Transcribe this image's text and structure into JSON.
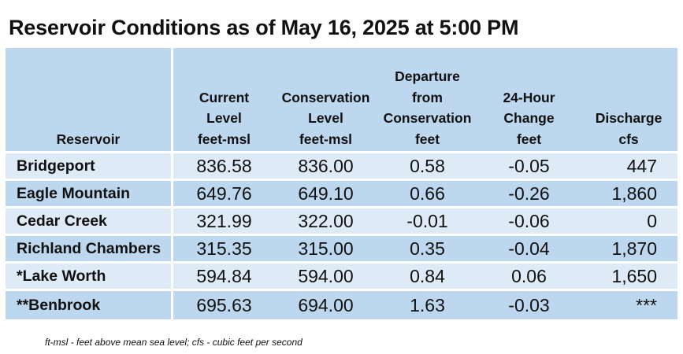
{
  "title": "Reservoir Conditions as of May 16, 2025 at 5:00 PM",
  "headers": [
    [
      "Reservoir"
    ],
    [
      "Current",
      "Level",
      "feet-msl"
    ],
    [
      "Conservation",
      "Level",
      "feet-msl"
    ],
    [
      "Departure",
      "from",
      "Conservation",
      "feet"
    ],
    [
      "24-Hour",
      "Change",
      "feet"
    ],
    [
      "Discharge",
      "cfs"
    ]
  ],
  "rows": [
    [
      "Bridgeport",
      "836.58",
      "836.00",
      "0.58",
      "-0.05",
      "447"
    ],
    [
      "Eagle Mountain",
      "649.76",
      "649.10",
      "0.66",
      "-0.26",
      "1,860"
    ],
    [
      "Cedar Creek",
      "321.99",
      "322.00",
      "-0.01",
      "-0.06",
      "0"
    ],
    [
      "Richland Chambers",
      "315.35",
      "315.00",
      "0.35",
      "-0.04",
      "1,870"
    ],
    [
      "*Lake Worth",
      "594.84",
      "594.00",
      "0.84",
      "0.06",
      "1,650"
    ],
    [
      "**Benbrook",
      "695.63",
      "694.00",
      "1.63",
      "-0.03",
      "***"
    ]
  ],
  "footnote": "ft-msl - feet above mean sea level; cfs - cubic feet per second",
  "colors": {
    "header_bg": "#bdd7ee",
    "row_light": "#deebf7",
    "row_dark": "#bdd7ee"
  }
}
